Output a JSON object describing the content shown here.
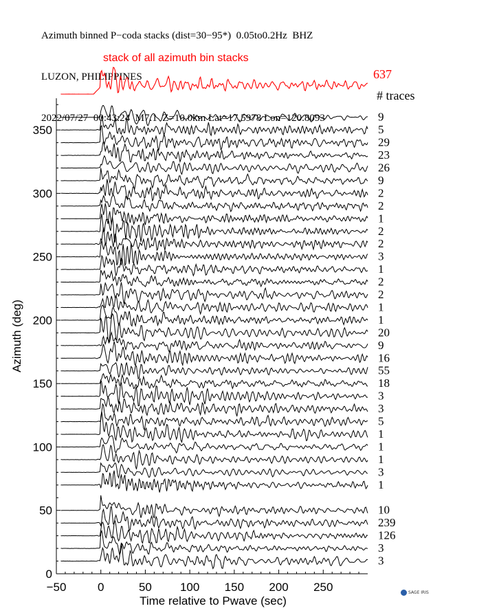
{
  "header": {
    "line1": "Azimuth binned P−coda stacks (dist=30−95*)  0.05to0.2Hz  BHZ",
    "line2": "LUZON, PHILIPPINES",
    "line3": "2022/07/27  00:43:24  M7.1  Z=10.0km Lat=17.5978 Lon=120.8093"
  },
  "logo": {
    "text": "SAGE IRIS"
  },
  "chart_data": {
    "type": "line",
    "title": "stack of all azimuth bin stacks",
    "xlabel": "Time relative to Pwave (sec)",
    "ylabel": "Azimuth (deg)",
    "xlim": [
      -50,
      300
    ],
    "ylim": [
      0,
      375
    ],
    "xticks": [
      -50,
      0,
      50,
      100,
      150,
      200,
      250
    ],
    "yticks": [
      0,
      50,
      100,
      150,
      200,
      250,
      300,
      350
    ],
    "grid": false,
    "stack_color": "#ff0000",
    "trace_color": "#000000",
    "stack": {
      "label": "stack of all azimuth bin stacks",
      "traces": "637"
    },
    "traces_header": "# traces",
    "series": [
      {
        "azimuth": 360,
        "traces": "9"
      },
      {
        "azimuth": 350,
        "traces": "5"
      },
      {
        "azimuth": 340,
        "traces": "29"
      },
      {
        "azimuth": 330,
        "traces": "23"
      },
      {
        "azimuth": 320,
        "traces": "26"
      },
      {
        "azimuth": 310,
        "traces": "9"
      },
      {
        "azimuth": 300,
        "traces": "2"
      },
      {
        "azimuth": 290,
        "traces": "2"
      },
      {
        "azimuth": 280,
        "traces": "1"
      },
      {
        "azimuth": 270,
        "traces": "2"
      },
      {
        "azimuth": 260,
        "traces": "2"
      },
      {
        "azimuth": 250,
        "traces": "3"
      },
      {
        "azimuth": 240,
        "traces": "1"
      },
      {
        "azimuth": 230,
        "traces": "2"
      },
      {
        "azimuth": 220,
        "traces": "2"
      },
      {
        "azimuth": 210,
        "traces": "1"
      },
      {
        "azimuth": 200,
        "traces": "1"
      },
      {
        "azimuth": 190,
        "traces": "20"
      },
      {
        "azimuth": 180,
        "traces": "9"
      },
      {
        "azimuth": 170,
        "traces": "16"
      },
      {
        "azimuth": 160,
        "traces": "55"
      },
      {
        "azimuth": 150,
        "traces": "18"
      },
      {
        "azimuth": 140,
        "traces": "3"
      },
      {
        "azimuth": 130,
        "traces": "3"
      },
      {
        "azimuth": 120,
        "traces": "5"
      },
      {
        "azimuth": 110,
        "traces": "1"
      },
      {
        "azimuth": 100,
        "traces": "1"
      },
      {
        "azimuth": 90,
        "traces": "1"
      },
      {
        "azimuth": 80,
        "traces": "3"
      },
      {
        "azimuth": 70,
        "traces": "1"
      },
      {
        "azimuth": 50,
        "traces": "10"
      },
      {
        "azimuth": 40,
        "traces": "239"
      },
      {
        "azimuth": 30,
        "traces": "126"
      },
      {
        "azimuth": 20,
        "traces": "3"
      },
      {
        "azimuth": 10,
        "traces": "3"
      }
    ]
  }
}
